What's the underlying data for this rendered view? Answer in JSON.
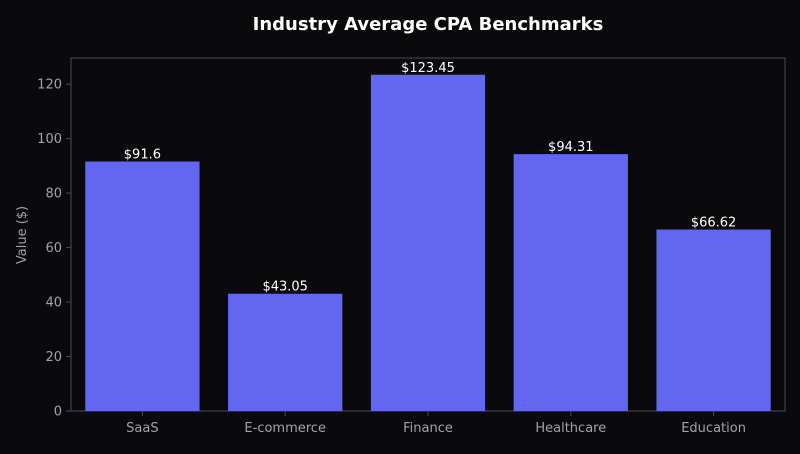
{
  "chart_data": {
    "type": "bar",
    "title": "Industry Average CPA Benchmarks",
    "xlabel": "",
    "ylabel": "Value ($)",
    "categories": [
      "SaaS",
      "E-commerce",
      "Finance",
      "Healthcare",
      "Education"
    ],
    "values": [
      91.6,
      43.05,
      123.45,
      94.31,
      66.62
    ],
    "value_labels": [
      "$91.6",
      "$43.05",
      "$123.45",
      "$94.31",
      "$66.62"
    ],
    "ylim": [
      0,
      129.6
    ],
    "yticks": [
      0,
      20,
      40,
      60,
      80,
      100,
      120
    ],
    "grid": false,
    "legend": "none",
    "colors": {
      "background": "#0a0a0c",
      "bar": "#6366f1",
      "axis": "#4a4a52",
      "tick_text": "#a1a1aa",
      "title_text": "#ffffff",
      "data_label_text": "#ffffff"
    }
  }
}
